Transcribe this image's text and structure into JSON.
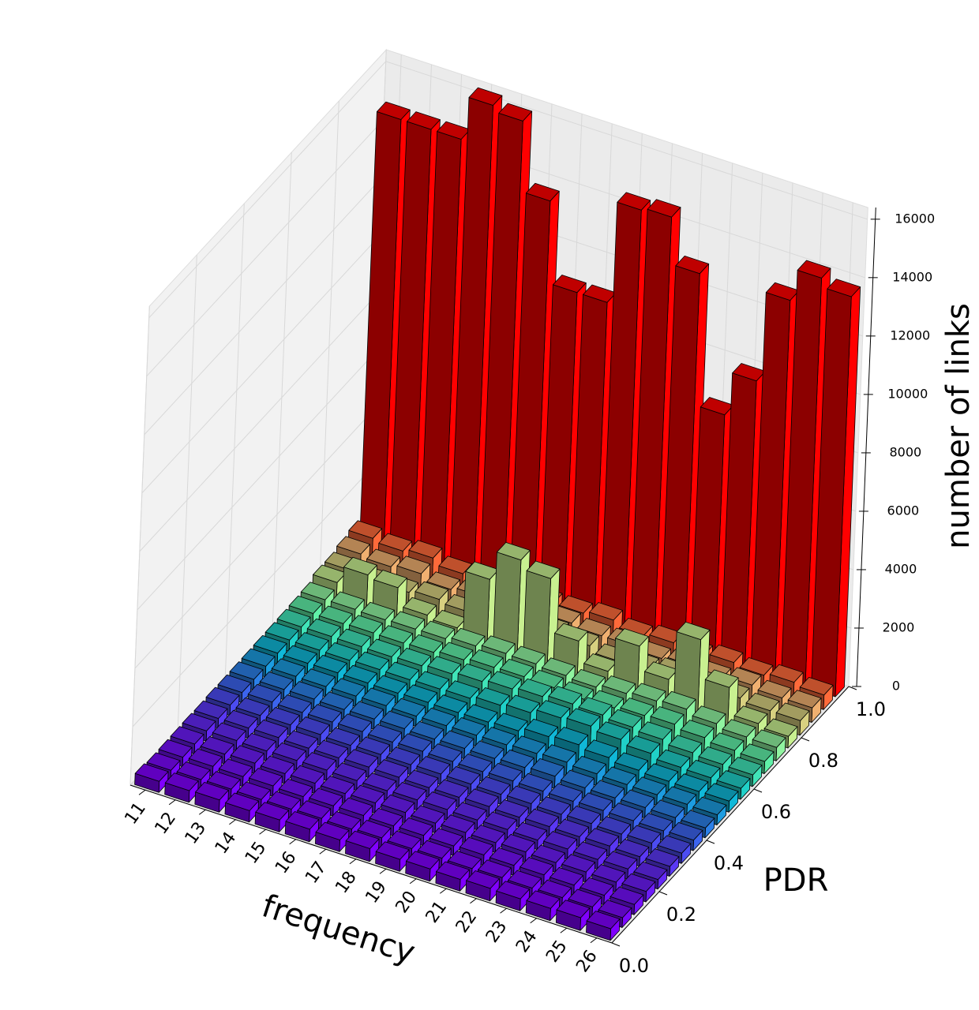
{
  "chart_data": {
    "type": "bar3d",
    "x_label": "frequency",
    "y_label": "PDR",
    "z_label": "number of links",
    "categories": [
      11,
      12,
      13,
      14,
      15,
      16,
      17,
      18,
      19,
      20,
      21,
      22,
      23,
      24,
      25,
      26
    ],
    "ybins": [
      0,
      0.05,
      0.1,
      0.15,
      0.2,
      0.25,
      0.3,
      0.35,
      0.4,
      0.45,
      0.5,
      0.55,
      0.6,
      0.65,
      0.7,
      0.75,
      0.8,
      0.85,
      0.9,
      0.95,
      1.0
    ],
    "ylim": [
      0,
      1
    ],
    "yticks": [
      {
        "value": 0,
        "label": "0.0"
      },
      {
        "value": 0.2,
        "label": "0.2"
      },
      {
        "value": 0.4,
        "label": "0.4"
      },
      {
        "value": 0.6,
        "label": "0.6"
      },
      {
        "value": 0.8,
        "label": "0.8"
      },
      {
        "value": 1,
        "label": "1.0"
      }
    ],
    "zlim": [
      0,
      16400
    ],
    "zticks": [
      0,
      2000,
      4000,
      6000,
      8000,
      10000,
      12000,
      14000,
      16000
    ],
    "grid": true,
    "colors": [
      "#8000ff",
      "#7a08fc",
      "#7410fa",
      "#6c1cf8",
      "#6428f6",
      "#5a38f4",
      "#4c4cf2",
      "#3c64ee",
      "#2c80e8",
      "#1c9ce0",
      "#10b8d8",
      "#20d0c8",
      "#40e4b8",
      "#60f0a8",
      "#90f4a0",
      "#c8f090",
      "#d8d080",
      "#f0b070",
      "#ff6a3a",
      "#ff0000"
    ],
    "values": [
      [
        380,
        400,
        420,
        390,
        410,
        430,
        400,
        440,
        410,
        420,
        400,
        430,
        410,
        420,
        440,
        400
      ],
      [
        320,
        340,
        350,
        330,
        340,
        360,
        330,
        370,
        340,
        350,
        330,
        360,
        340,
        350,
        370,
        340
      ],
      [
        330,
        350,
        340,
        360,
        330,
        350,
        360,
        340,
        350,
        330,
        360,
        340,
        350,
        340,
        330,
        350
      ],
      [
        340,
        330,
        360,
        340,
        350,
        330,
        350,
        360,
        330,
        350,
        340,
        360,
        330,
        350,
        340,
        360
      ],
      [
        350,
        360,
        340,
        350,
        360,
        340,
        330,
        350,
        360,
        340,
        350,
        330,
        360,
        340,
        350,
        330
      ],
      [
        340,
        350,
        360,
        330,
        340,
        360,
        350,
        330,
        340,
        360,
        330,
        350,
        340,
        360,
        330,
        340
      ],
      [
        360,
        340,
        350,
        360,
        330,
        350,
        340,
        360,
        350,
        340,
        360,
        330,
        350,
        330,
        360,
        350
      ],
      [
        350,
        360,
        340,
        350,
        360,
        340,
        360,
        350,
        340,
        360,
        350,
        340,
        360,
        350,
        340,
        360
      ],
      [
        360,
        350,
        360,
        340,
        350,
        360,
        340,
        360,
        350,
        380,
        420,
        360,
        350,
        360,
        350,
        340
      ],
      [
        370,
        360,
        350,
        360,
        370,
        350,
        360,
        370,
        380,
        420,
        460,
        400,
        370,
        360,
        370,
        350
      ],
      [
        380,
        370,
        380,
        370,
        360,
        380,
        370,
        380,
        420,
        560,
        620,
        520,
        420,
        380,
        370,
        380
      ],
      [
        390,
        380,
        370,
        390,
        380,
        400,
        420,
        520,
        600,
        760,
        820,
        700,
        560,
        420,
        400,
        380
      ],
      [
        400,
        410,
        400,
        390,
        420,
        480,
        560,
        640,
        720,
        800,
        760,
        680,
        600,
        480,
        420,
        400
      ],
      [
        420,
        410,
        430,
        420,
        440,
        520,
        600,
        620,
        580,
        520,
        560,
        640,
        680,
        560,
        460,
        420
      ],
      [
        450,
        460,
        440,
        460,
        470,
        560,
        640,
        620,
        560,
        500,
        620,
        700,
        760,
        600,
        480,
        460
      ],
      [
        600,
        1200,
        1100,
        500,
        400,
        2400,
        3400,
        3100,
        1300,
        600,
        1800,
        1000,
        2700,
        1400,
        500,
        400
      ],
      [
        600,
        500,
        500,
        600,
        500,
        700,
        600,
        800,
        700,
        500,
        600,
        700,
        700,
        600,
        500,
        500
      ],
      [
        700,
        600,
        700,
        500,
        600,
        600,
        500,
        700,
        600,
        600,
        500,
        600,
        500,
        600,
        500,
        500
      ],
      [
        800,
        700,
        800,
        600,
        700,
        500,
        600,
        600,
        700,
        500,
        600,
        500,
        600,
        500,
        600,
        500
      ],
      [
        14700,
        14700,
        14700,
        16200,
        16000,
        13600,
        10800,
        10800,
        14300,
        14400,
        12800,
        8300,
        9800,
        12900,
        14000,
        13700
      ]
    ]
  }
}
